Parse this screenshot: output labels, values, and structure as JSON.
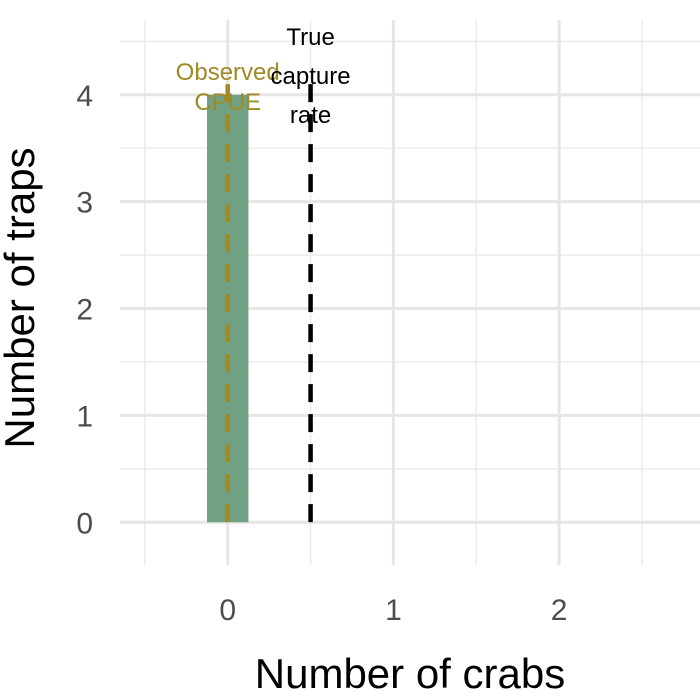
{
  "chart_data": {
    "type": "bar",
    "xlabel": "Number of crabs",
    "ylabel": "Number of traps",
    "xlim": [
      -0.65,
      2.85
    ],
    "ylim": [
      -0.4,
      4.7
    ],
    "x_ticks": [
      0,
      1,
      2
    ],
    "y_ticks": [
      0,
      1,
      2,
      3,
      4
    ],
    "grid": true,
    "bars": [
      {
        "x": 0,
        "value": 4
      }
    ],
    "bar_color": "#72a083",
    "vlines": [
      {
        "x": 0.0,
        "label": [
          "Observed",
          "CPUE"
        ],
        "color": "#a08a24"
      },
      {
        "x": 0.5,
        "label": [
          "True",
          "capture",
          "rate"
        ],
        "color": "#000000"
      }
    ]
  }
}
